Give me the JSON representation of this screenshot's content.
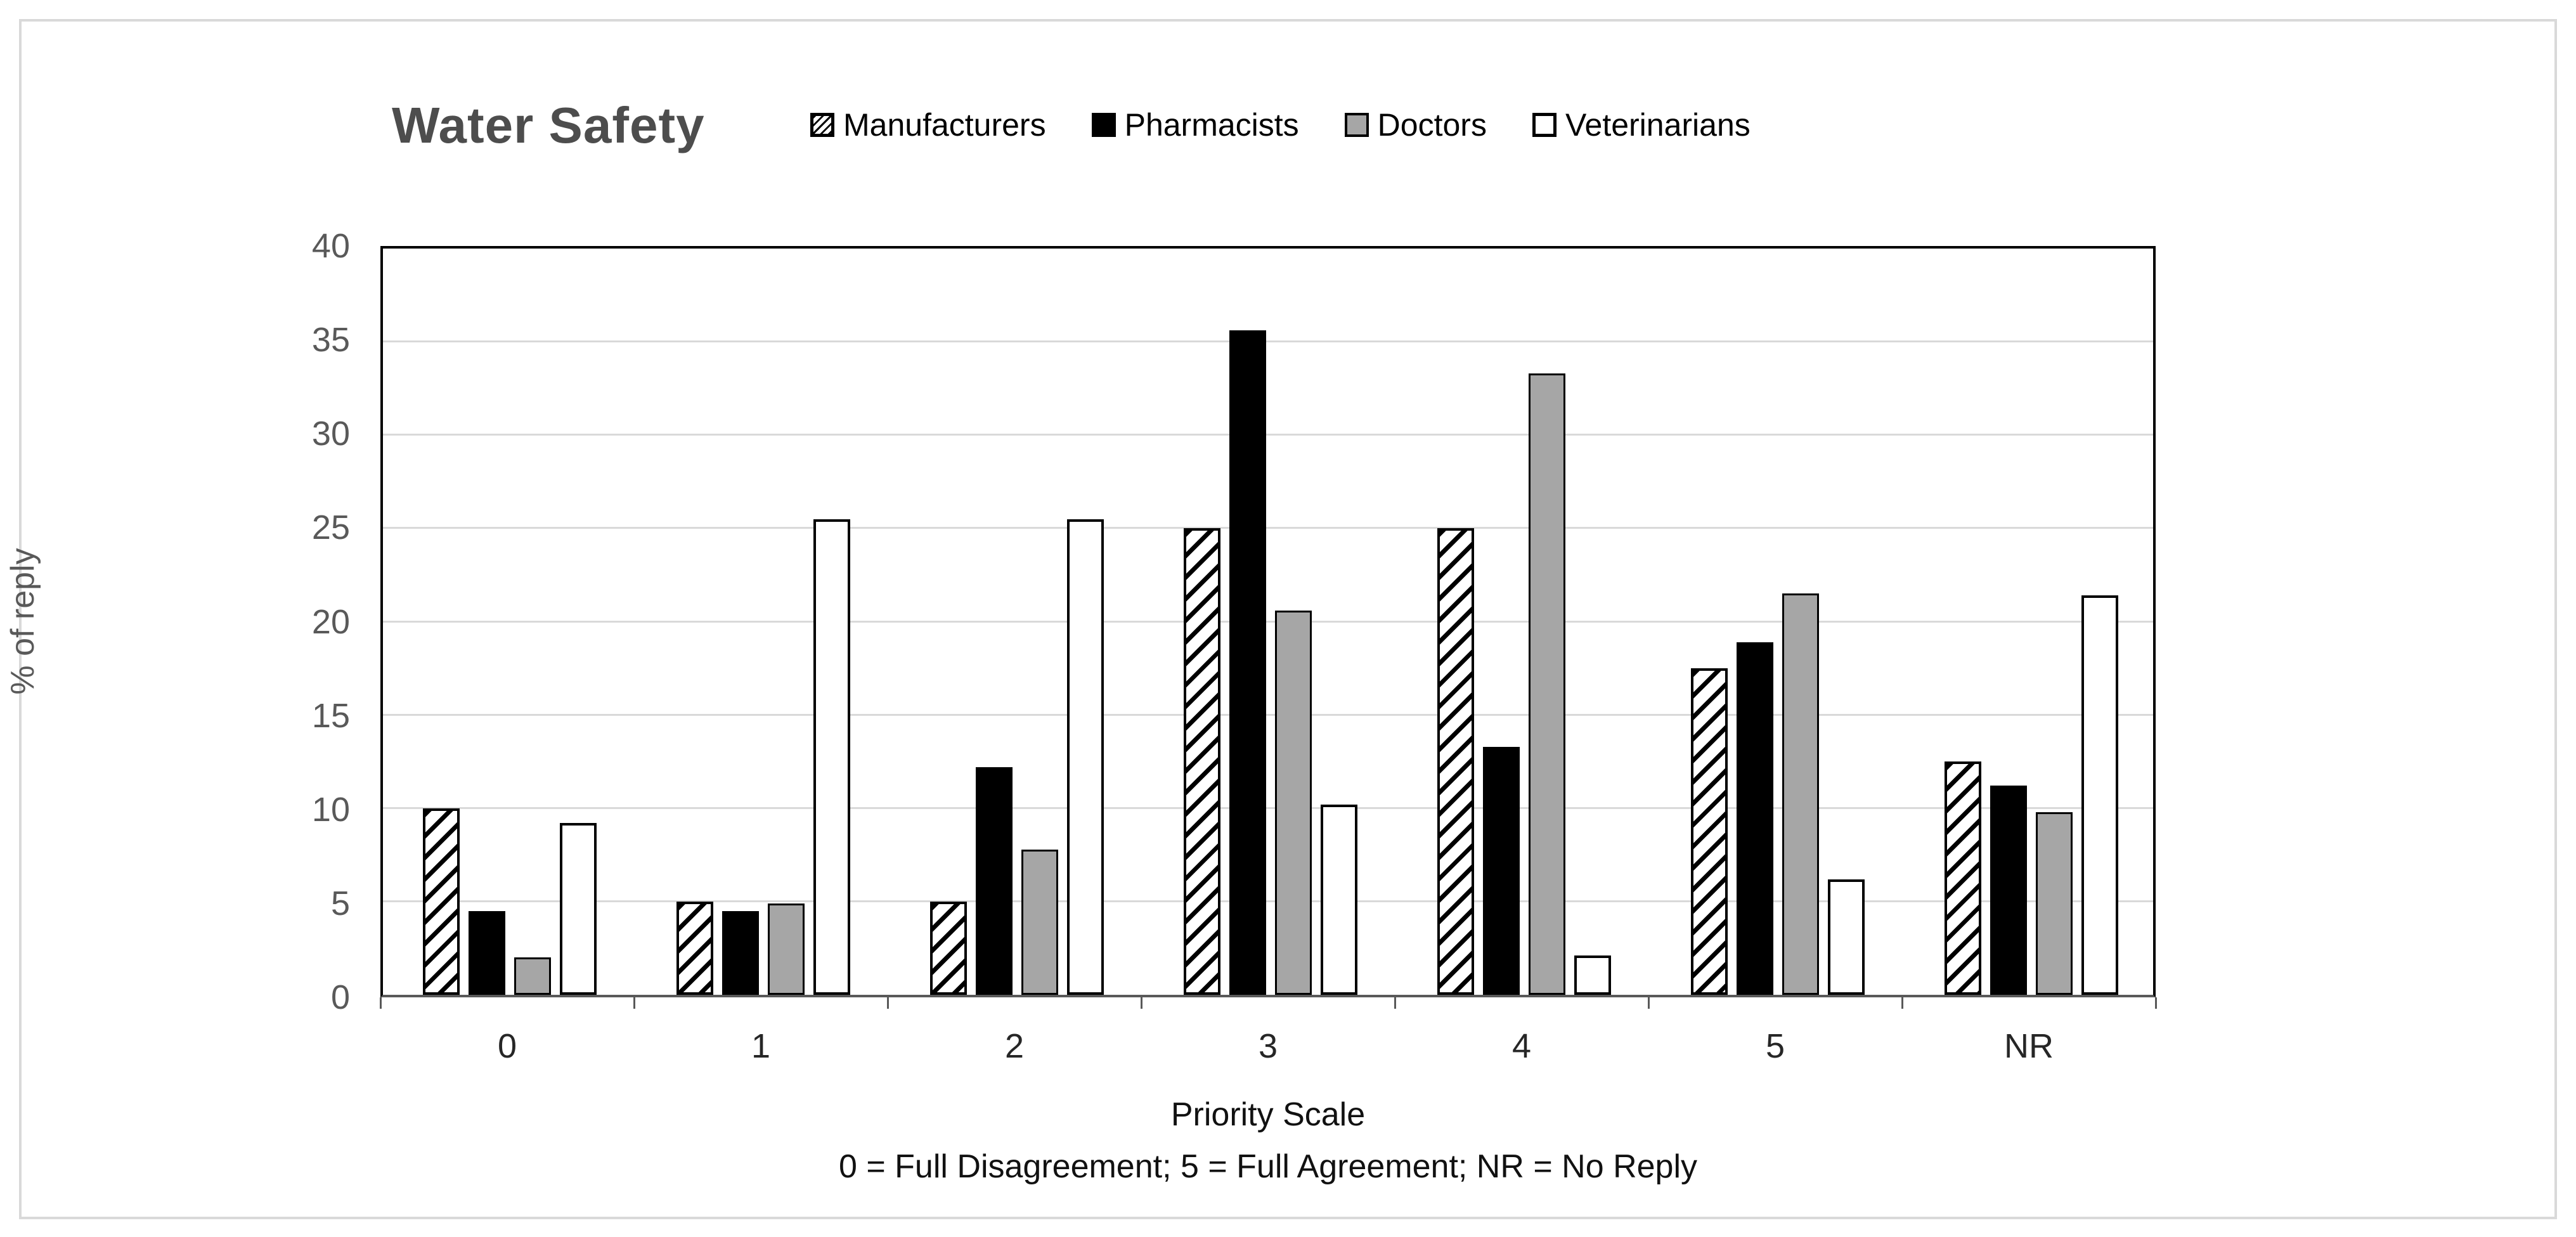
{
  "header": {
    "title": "Water Safety"
  },
  "legend": {
    "items": [
      {
        "label": "Manufacturers",
        "swatch": "diagonal-hatch"
      },
      {
        "label": "Pharmacists",
        "swatch": "solid-black"
      },
      {
        "label": "Doctors",
        "swatch": "solid-gray"
      },
      {
        "label": "Veterinarians",
        "swatch": "solid-white"
      }
    ]
  },
  "y_axis": {
    "title": "% of reply",
    "ticks": [
      0,
      5,
      10,
      15,
      20,
      25,
      30,
      35,
      40
    ]
  },
  "x_axis": {
    "title": "Priority Scale",
    "footnote": "0 = Full Disagreement; 5 = Full Agreement; NR = No Reply"
  },
  "chart_data": {
    "type": "bar",
    "title": "Water Safety",
    "categories": [
      "0",
      "1",
      "2",
      "3",
      "4",
      "5",
      "NR"
    ],
    "series": [
      {
        "name": "Manufacturers",
        "style": "diagonal-hatch",
        "color": "#ffffff",
        "values": [
          10.0,
          5.0,
          5.0,
          25.0,
          25.0,
          17.5,
          12.5
        ]
      },
      {
        "name": "Pharmacists",
        "style": "solid",
        "color": "#000000",
        "values": [
          4.5,
          4.5,
          12.2,
          35.6,
          13.3,
          18.9,
          11.2
        ]
      },
      {
        "name": "Doctors",
        "style": "solid",
        "color": "#a6a6a6",
        "values": [
          2.0,
          4.9,
          7.8,
          20.6,
          33.3,
          21.5,
          9.8
        ]
      },
      {
        "name": "Veterinarians",
        "style": "solid",
        "color": "#ffffff",
        "values": [
          9.2,
          25.5,
          25.5,
          10.2,
          2.1,
          6.2,
          21.4
        ]
      }
    ],
    "xlabel": "Priority Scale",
    "ylabel": "% of reply",
    "ylim": [
      0,
      40
    ],
    "ytick_step": 5,
    "grid": true,
    "legend_position": "top"
  },
  "colors": {
    "frame_border": "#d9d9d9",
    "gridline": "#d9d9d9",
    "axis_text": "#595959",
    "title_text": "#4d4d4d",
    "plot_border": "#000000",
    "bar_black": "#000000",
    "bar_gray": "#a6a6a6",
    "bar_white": "#ffffff"
  }
}
